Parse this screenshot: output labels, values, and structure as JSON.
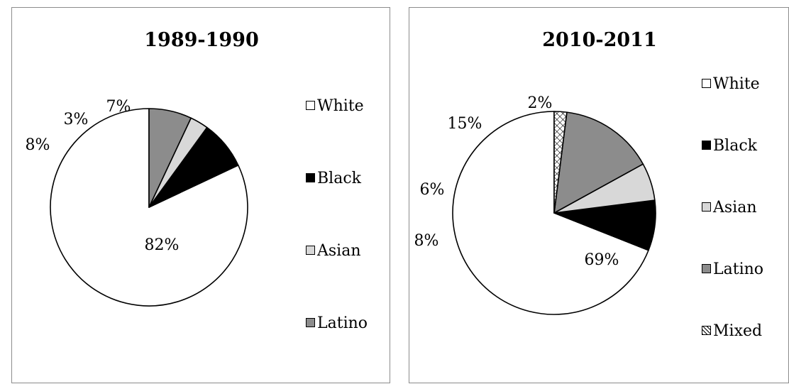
{
  "chart_data": [
    {
      "type": "pie",
      "title": "1989-1990",
      "slices": [
        {
          "label": "White",
          "value": 82,
          "display": "82%",
          "color": "#ffffff"
        },
        {
          "label": "Black",
          "value": 8,
          "display": "8%",
          "color": "#000000"
        },
        {
          "label": "Asian",
          "value": 3,
          "display": "3%",
          "color": "#d8d8d8"
        },
        {
          "label": "Latino",
          "value": 7,
          "display": "7%",
          "color": "#8c8c8c"
        }
      ],
      "legend_position": "right"
    },
    {
      "type": "pie",
      "title": "2010-2011",
      "slices": [
        {
          "label": "White",
          "value": 69,
          "display": "69%",
          "color": "#ffffff"
        },
        {
          "label": "Black",
          "value": 8,
          "display": "8%",
          "color": "#000000"
        },
        {
          "label": "Asian",
          "value": 6,
          "display": "6%",
          "color": "#d8d8d8"
        },
        {
          "label": "Latino",
          "value": 15,
          "display": "15%",
          "color": "#8c8c8c"
        },
        {
          "label": "Mixed",
          "value": 2,
          "display": "2%",
          "color": "pattern"
        }
      ],
      "legend_position": "right"
    }
  ]
}
